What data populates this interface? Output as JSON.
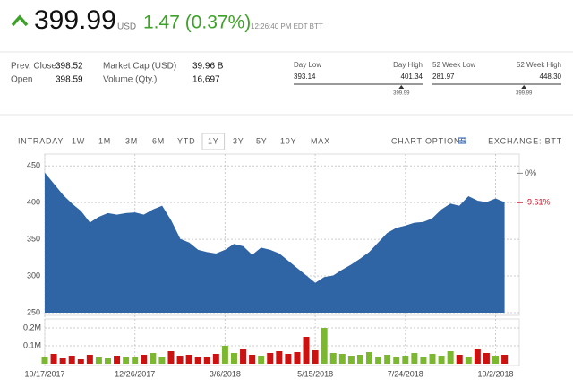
{
  "header": {
    "price": "399.99",
    "currency": "USD",
    "change": "1.47 (0.37%)",
    "time": "12:26:40 PM EDT BTT"
  },
  "stats": [
    {
      "label": "Prev. Close",
      "value": "398.52"
    },
    {
      "label": "Open",
      "value": "398.59"
    },
    {
      "label": "Market Cap (USD)",
      "value": "39.96 B"
    },
    {
      "label": "Volume (Qty.)",
      "value": "16,697"
    }
  ],
  "ranges": [
    {
      "low_label": "Day Low",
      "low": "393.14",
      "high_label": "Day High",
      "high": "401.34",
      "current": "399.99"
    },
    {
      "low_label": "52 Week Low",
      "low": "281.97",
      "high_label": "52 Week High",
      "high": "448.30",
      "current": "399.99"
    }
  ],
  "tabs": [
    "INTRADAY",
    "1W",
    "1M",
    "3M",
    "6M",
    "YTD",
    "1Y",
    "3Y",
    "5Y",
    "10Y",
    "MAX"
  ],
  "selected_tab": 6,
  "chart_options": "CHART OPTIONS",
  "exchange": "EXCHANGE: BTT",
  "chart_data": {
    "type": "area",
    "categories": [
      "10/17/2017",
      null,
      null,
      null,
      null,
      null,
      null,
      null,
      null,
      null,
      "12/26/2017",
      null,
      null,
      null,
      null,
      null,
      null,
      null,
      null,
      null,
      "3/6/2018",
      null,
      null,
      null,
      null,
      null,
      null,
      null,
      null,
      null,
      "5/15/2018",
      null,
      null,
      null,
      null,
      null,
      null,
      null,
      null,
      null,
      "7/24/2018",
      null,
      null,
      null,
      null,
      null,
      null,
      null,
      null,
      null,
      "10/2/2018",
      null
    ],
    "series": [
      {
        "type": "area",
        "color": "#2f64a5",
        "values": [
          440,
          425,
          410,
          398,
          388,
          372,
          380,
          385,
          383,
          385,
          386,
          383,
          390,
          395,
          375,
          350,
          345,
          335,
          332,
          330,
          335,
          343,
          340,
          328,
          338,
          335,
          330,
          320,
          310,
          300,
          290,
          298,
          300,
          308,
          315,
          323,
          332,
          345,
          358,
          365,
          368,
          372,
          373,
          378,
          390,
          398,
          395,
          408,
          402,
          400,
          405,
          399.99
        ]
      },
      {
        "type": "bar",
        "axis": "y2",
        "colors": [
          "#7cb82f",
          "#cc1111",
          "#cc1111",
          "#cc1111",
          "#cc1111",
          "#cc1111",
          "#7cb82f",
          "#7cb82f",
          "#cc1111",
          "#7cb82f",
          "#7cb82f",
          "#cc1111",
          "#7cb82f",
          "#7cb82f",
          "#cc1111",
          "#cc1111",
          "#cc1111",
          "#cc1111",
          "#cc1111",
          "#cc1111",
          "#7cb82f",
          "#7cb82f",
          "#cc1111",
          "#cc1111",
          "#7cb82f",
          "#cc1111",
          "#cc1111",
          "#cc1111",
          "#cc1111",
          "#cc1111",
          "#cc1111",
          "#7cb82f",
          "#7cb82f",
          "#7cb82f",
          "#7cb82f",
          "#7cb82f",
          "#7cb82f",
          "#7cb82f",
          "#7cb82f",
          "#7cb82f",
          "#7cb82f",
          "#7cb82f",
          "#7cb82f",
          "#7cb82f",
          "#7cb82f",
          "#7cb82f",
          "#cc1111",
          "#7cb82f",
          "#cc1111",
          "#cc1111",
          "#7cb82f",
          "#cc1111"
        ],
        "values": [
          40000,
          55000,
          30000,
          45000,
          25000,
          50000,
          35000,
          30000,
          45000,
          40000,
          35000,
          50000,
          60000,
          40000,
          70000,
          45000,
          50000,
          35000,
          40000,
          55000,
          100000,
          60000,
          80000,
          50000,
          45000,
          60000,
          70000,
          55000,
          65000,
          150000,
          75000,
          200000,
          60000,
          55000,
          45000,
          50000,
          65000,
          40000,
          50000,
          35000,
          45000,
          60000,
          40000,
          55000,
          45000,
          70000,
          50000,
          40000,
          80000,
          60000,
          45000,
          50000
        ]
      }
    ],
    "ylim": [
      250,
      460
    ],
    "yticks": [
      250,
      300,
      350,
      400,
      450
    ],
    "y2lim": [
      0,
      200000
    ],
    "y2ticks": [
      {
        "value": 100000,
        "label": "0.1M"
      },
      {
        "value": 200000,
        "label": "0.2M"
      }
    ],
    "annotations": [
      "0%",
      "-9.61%"
    ],
    "grid": true
  }
}
